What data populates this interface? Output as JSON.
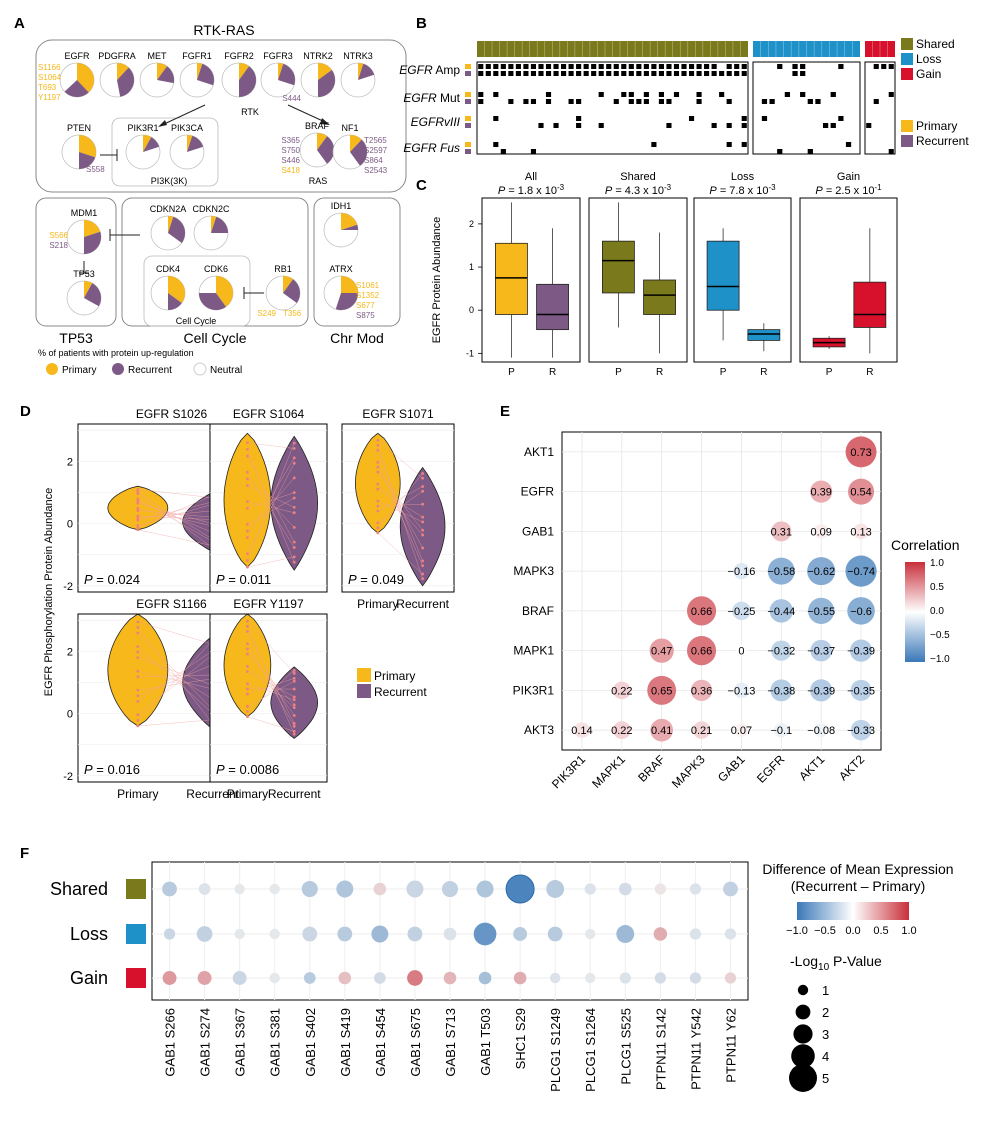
{
  "colors": {
    "primary": "#F6B81A",
    "recurrent": "#7D5A86",
    "neutral": "#FFFFFF",
    "shared": "#7A7A1C",
    "loss": "#1E92C8",
    "gain": "#D7112B",
    "corr_pos": "#C8303A",
    "corr_neg": "#3A78B8"
  },
  "panel_labels": [
    "A",
    "B",
    "C",
    "D",
    "E",
    "F"
  ],
  "panelA": {
    "title": "RTK-RAS",
    "rtk_label": "RTK",
    "pi3k_label": "PI3K(3K)",
    "ras_label": "RAS",
    "cellcycle_label": "Cell Cycle",
    "bottom_titles": [
      "TP53",
      "Cell Cycle",
      "Chr Mod"
    ],
    "legend_title": "% of patients with protein up-regulation",
    "legend": [
      "Primary",
      "Recurrent",
      "Neutral"
    ],
    "genes": [
      {
        "name": "EGFR",
        "primary": 0.38,
        "recurrent": 0.25
      },
      {
        "name": "PDGFRA",
        "primary": 0.12,
        "recurrent": 0.35
      },
      {
        "name": "MET",
        "primary": 0.1,
        "recurrent": 0.18
      },
      {
        "name": "FGFR1",
        "primary": 0.05,
        "recurrent": 0.25
      },
      {
        "name": "FGFR2",
        "primary": 0.1,
        "recurrent": 0.4
      },
      {
        "name": "FGFR3",
        "primary": 0.05,
        "recurrent": 0.25
      },
      {
        "name": "NTRK2",
        "primary": 0.15,
        "recurrent": 0.35
      },
      {
        "name": "NTRK3",
        "primary": 0.05,
        "recurrent": 0.15
      },
      {
        "name": "PTEN",
        "primary": 0.3,
        "recurrent": 0.2
      },
      {
        "name": "PIK3R1",
        "primary": 0.08,
        "recurrent": 0.12
      },
      {
        "name": "PIK3CA",
        "primary": 0.05,
        "recurrent": 0.15
      },
      {
        "name": "BRAF",
        "primary": 0.1,
        "recurrent": 0.3
      },
      {
        "name": "NF1",
        "primary": 0.12,
        "recurrent": 0.28
      },
      {
        "name": "MDM1",
        "primary": 0.2,
        "recurrent": 0.3
      },
      {
        "name": "TP53",
        "primary": 0.08,
        "recurrent": 0.25
      },
      {
        "name": "CDKN2A",
        "primary": 0.05,
        "recurrent": 0.3
      },
      {
        "name": "CDKN2C",
        "primary": 0.05,
        "recurrent": 0.2
      },
      {
        "name": "CDK4",
        "primary": 0.35,
        "recurrent": 0.15
      },
      {
        "name": "CDK6",
        "primary": 0.4,
        "recurrent": 0.35
      },
      {
        "name": "RB1",
        "primary": 0.1,
        "recurrent": 0.25
      },
      {
        "name": "IDH1",
        "primary": 0.2,
        "recurrent": 0.05
      },
      {
        "name": "ATRX",
        "primary": 0.25,
        "recurrent": 0.3
      }
    ],
    "sites": {
      "EGFR": [
        {
          "t": "S1166",
          "c": "p"
        },
        {
          "t": "S1064",
          "c": "p"
        },
        {
          "t": "T693",
          "c": "p"
        },
        {
          "t": "Y1197",
          "c": "p"
        }
      ],
      "NTRK2": [
        {
          "t": "S444",
          "c": "r"
        }
      ],
      "PTEN": [
        {
          "t": "S558",
          "c": "r"
        }
      ],
      "BRAF": [
        {
          "t": "S365",
          "c": "r"
        },
        {
          "t": "S750",
          "c": "r"
        },
        {
          "t": "S446",
          "c": "r"
        },
        {
          "t": "S418",
          "c": "p"
        }
      ],
      "NF1": [
        {
          "t": "T2565",
          "c": "r"
        },
        {
          "t": "S2597",
          "c": "r"
        },
        {
          "t": "S864",
          "c": "r"
        },
        {
          "t": "S2543",
          "c": "r"
        }
      ],
      "MDM1": [
        {
          "t": "S566",
          "c": "p"
        },
        {
          "t": "S218",
          "c": "r"
        }
      ],
      "RB1": [
        {
          "t": "S249",
          "c": "p"
        },
        {
          "t": "T356",
          "c": "p"
        }
      ],
      "ATRX": [
        {
          "t": "S1061",
          "c": "p"
        },
        {
          "t": "S1352",
          "c": "p"
        },
        {
          "t": "S677",
          "c": "p"
        },
        {
          "t": "S875",
          "c": "r"
        }
      ]
    }
  },
  "panelB": {
    "rows": [
      "EGFR Amp",
      "EGFR Mut",
      "EGFRvIII",
      "EGFR Fus"
    ],
    "row_italic": [
      "EGFR",
      "EGFR",
      "EGFRvIII",
      "EGFR Fus"
    ],
    "legend": [
      "Shared",
      "Loss",
      "Gain",
      "Primary",
      "Recurrent"
    ],
    "groups": [
      {
        "name": "Shared",
        "n": 36
      },
      {
        "name": "Loss",
        "n": 14
      },
      {
        "name": "Gain",
        "n": 4
      }
    ]
  },
  "chart_data": [
    {
      "panel": "C",
      "type": "box",
      "ylabel": "EGFR Protein Abundance",
      "ylim": [
        -1.2,
        2.6
      ],
      "yticks": [
        -1,
        0,
        1,
        2
      ],
      "facets": [
        {
          "title": "All",
          "p": "P = 1.8 x 10",
          "exp": "-3",
          "boxes": [
            {
              "x": "P",
              "q1": -0.1,
              "med": 0.75,
              "q3": 1.55,
              "lo": -1.1,
              "hi": 2.5,
              "color": "#F6B81A"
            },
            {
              "x": "R",
              "q1": -0.45,
              "med": -0.1,
              "q3": 0.6,
              "lo": -1.1,
              "hi": 1.9,
              "color": "#7D5A86"
            }
          ]
        },
        {
          "title": "Shared",
          "p": "P = 4.3 x 10",
          "exp": "-3",
          "boxes": [
            {
              "x": "P",
              "q1": 0.4,
              "med": 1.15,
              "q3": 1.6,
              "lo": -0.4,
              "hi": 2.5,
              "color": "#7A7A1C"
            },
            {
              "x": "R",
              "q1": -0.1,
              "med": 0.35,
              "q3": 0.7,
              "lo": -1.0,
              "hi": 1.8,
              "color": "#7A7A1C"
            }
          ]
        },
        {
          "title": "Loss",
          "p": "P = 7.8 x 10",
          "exp": "-3",
          "boxes": [
            {
              "x": "P",
              "q1": 0.0,
              "med": 0.55,
              "q3": 1.6,
              "lo": -0.7,
              "hi": 1.9,
              "color": "#1E92C8"
            },
            {
              "x": "R",
              "q1": -0.7,
              "med": -0.55,
              "q3": -0.45,
              "lo": -0.95,
              "hi": -0.3,
              "color": "#1E92C8"
            }
          ]
        },
        {
          "title": "Gain",
          "p": "P = 2.5 x 10",
          "exp": "-1",
          "boxes": [
            {
              "x": "P",
              "q1": -0.85,
              "med": -0.75,
              "q3": -0.65,
              "lo": -0.9,
              "hi": -0.6,
              "color": "#D7112B"
            },
            {
              "x": "R",
              "q1": -0.4,
              "med": -0.1,
              "q3": 0.65,
              "lo": -1.0,
              "hi": 1.9,
              "color": "#D7112B"
            }
          ]
        }
      ]
    },
    {
      "panel": "D",
      "type": "violin",
      "ylabel": "EGFR Phosphorylation Protein Abundance",
      "ylim": [
        -2.2,
        3.2
      ],
      "yticks": [
        -2,
        0,
        2
      ],
      "xticks": [
        "Primary",
        "Recurrent"
      ],
      "legend": [
        "Primary",
        "Recurrent"
      ],
      "plots": [
        {
          "title": "EGFR S1026",
          "p": "P = 0.024",
          "prim": [
            -0.2,
            1.2
          ],
          "rec": [
            -0.9,
            1.0
          ]
        },
        {
          "title": "EGFR S1064",
          "p": "P = 0.011",
          "prim": [
            -1.4,
            2.9
          ],
          "rec": [
            -1.5,
            2.8
          ]
        },
        {
          "title": "EGFR S1071",
          "p": "P = 0.049",
          "prim": [
            -0.3,
            2.9
          ],
          "rec": [
            -2.0,
            1.8
          ]
        },
        {
          "title": "EGFR S1166",
          "p": "P = 0.016",
          "prim": [
            -0.4,
            3.2
          ],
          "rec": [
            -0.5,
            2.5
          ]
        },
        {
          "title": "EGFR Y1197",
          "p": "P = 0.0086",
          "prim": [
            -0.1,
            3.2
          ],
          "rec": [
            -0.8,
            1.5
          ]
        }
      ]
    },
    {
      "panel": "E",
      "type": "heatmap",
      "title": "Correlation",
      "rows": [
        "AKT1",
        "EGFR",
        "GAB1",
        "MAPK3",
        "BRAF",
        "MAPK1",
        "PIK3R1",
        "AKT3"
      ],
      "cols": [
        "PIK3R1",
        "MAPK1",
        "BRAF",
        "MAPK3",
        "GAB1",
        "EGFR",
        "AKT1",
        "AKT2"
      ],
      "cells": [
        [
          null,
          null,
          null,
          null,
          null,
          null,
          null,
          0.73
        ],
        [
          null,
          null,
          null,
          null,
          null,
          null,
          0.39,
          0.54
        ],
        [
          null,
          null,
          null,
          null,
          null,
          0.31,
          0.09,
          0.13
        ],
        [
          null,
          null,
          null,
          null,
          -0.16,
          -0.58,
          -0.62,
          -0.74
        ],
        [
          null,
          null,
          null,
          0.66,
          -0.25,
          -0.44,
          -0.55,
          -0.6
        ],
        [
          null,
          null,
          0.47,
          0.66,
          0,
          -0.32,
          -0.37,
          -0.39
        ],
        [
          null,
          0.22,
          0.65,
          0.36,
          -0.13,
          -0.38,
          -0.39,
          -0.35
        ],
        [
          0.14,
          0.22,
          0.41,
          0.21,
          0.07,
          -0.1,
          -0.08,
          -0.33
        ]
      ],
      "legend_ticks": [
        "1.0",
        "0.5",
        "0.0",
        "−0.5",
        "−1.0"
      ]
    },
    {
      "panel": "F",
      "type": "scatter",
      "title": "Difference of  Mean Expression",
      "subtitle": "(Recurrent – Primary)",
      "color_ticks": [
        "−1.0",
        "−0.5",
        "0.0",
        "0.5",
        "1.0"
      ],
      "size_title": "-Log",
      "size_sub": "10",
      "size_title_tail": " P-Value",
      "size_ticks": [
        "1",
        "2",
        "3",
        "4",
        "5"
      ],
      "rows": [
        "Shared",
        "Loss",
        "Gain"
      ],
      "cols": [
        "GAB1 S266",
        "GAB1 S274",
        "GAB1 S367",
        "GAB1 S381",
        "GAB1 S402",
        "GAB1 S419",
        "GAB1 S454",
        "GAB1 S675",
        "GAB1 S713",
        "GAB1 T503",
        "SHC1 S29",
        "PLCG1 S1249",
        "PLCG1 S1264",
        "PLCG1 S525",
        "PTPN11 S142",
        "PTPN11 Y542",
        "PTPN11 Y62"
      ],
      "diff": [
        [
          -0.3,
          -0.1,
          -0.05,
          -0.05,
          -0.3,
          -0.35,
          0.15,
          -0.2,
          -0.25,
          -0.35,
          -0.9,
          -0.3,
          -0.1,
          -0.15,
          0.05,
          -0.1,
          -0.25
        ],
        [
          -0.2,
          -0.25,
          -0.05,
          -0.05,
          -0.2,
          -0.3,
          -0.45,
          -0.25,
          -0.1,
          -0.75,
          -0.3,
          -0.3,
          -0.05,
          -0.45,
          0.35,
          -0.1,
          -0.1
        ],
        [
          0.45,
          0.4,
          -0.2,
          -0.05,
          -0.3,
          0.25,
          -0.15,
          0.6,
          0.3,
          -0.4,
          0.35,
          -0.1,
          -0.05,
          -0.1,
          -0.15,
          -0.15,
          0.15
        ]
      ],
      "logp": [
        [
          2.0,
          1.3,
          1.0,
          1.0,
          2.3,
          2.5,
          1.5,
          2.5,
          2.3,
          2.5,
          5.0,
          2.7,
          1.2,
          1.5,
          1.2,
          1.2,
          2.0
        ],
        [
          1.2,
          2.2,
          1.0,
          1.0,
          2.0,
          2.0,
          2.5,
          2.0,
          1.5,
          3.8,
          1.8,
          2.0,
          1.0,
          2.7,
          1.7,
          1.2,
          1.2
        ],
        [
          1.8,
          1.8,
          1.8,
          1.0,
          1.3,
          1.5,
          1.3,
          2.2,
          1.5,
          1.5,
          1.5,
          1.0,
          1.0,
          1.2,
          1.2,
          1.2,
          1.2
        ]
      ]
    }
  ]
}
